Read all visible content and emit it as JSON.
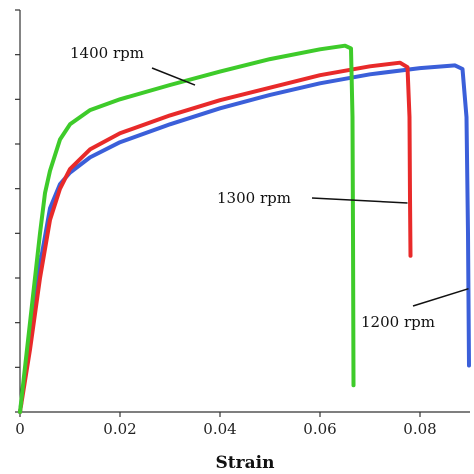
{
  "chart_data": {
    "type": "line",
    "title": "",
    "xlabel": "Strain",
    "ylabel": "",
    "xlim": [
      0,
      0.09
    ],
    "ylim": [
      0,
      450
    ],
    "x_ticks": [
      0,
      0.02,
      0.04,
      0.06,
      0.08
    ],
    "x_tick_labels": [
      "0",
      "0.02",
      "0.04",
      "0.06",
      "0.08"
    ],
    "grid": false,
    "legend": "none",
    "series": [
      {
        "name": "1400 rpm",
        "color": "#3ecb2a",
        "points": [
          [
            0,
            0
          ],
          [
            0.002,
            100
          ],
          [
            0.004,
            200
          ],
          [
            0.005,
            245
          ],
          [
            0.006,
            270
          ],
          [
            0.008,
            305
          ],
          [
            0.01,
            322
          ],
          [
            0.014,
            338
          ],
          [
            0.02,
            350
          ],
          [
            0.03,
            366
          ],
          [
            0.04,
            381
          ],
          [
            0.05,
            395
          ],
          [
            0.06,
            406
          ],
          [
            0.065,
            410
          ],
          [
            0.0662,
            407
          ],
          [
            0.0665,
            330
          ],
          [
            0.0666,
            200
          ],
          [
            0.0667,
            30
          ]
        ]
      },
      {
        "name": "1300 rpm",
        "color": "#e82a2a",
        "points": [
          [
            0,
            0
          ],
          [
            0.002,
            70
          ],
          [
            0.004,
            150
          ],
          [
            0.006,
            215
          ],
          [
            0.008,
            250
          ],
          [
            0.01,
            272
          ],
          [
            0.014,
            294
          ],
          [
            0.02,
            312
          ],
          [
            0.03,
            332
          ],
          [
            0.04,
            349
          ],
          [
            0.05,
            363
          ],
          [
            0.06,
            377
          ],
          [
            0.07,
            387
          ],
          [
            0.076,
            391
          ],
          [
            0.0775,
            386
          ],
          [
            0.0779,
            330
          ],
          [
            0.078,
            240
          ],
          [
            0.0781,
            175
          ]
        ]
      },
      {
        "name": "1200 rpm",
        "color": "#3b5fd9",
        "points": [
          [
            0,
            0
          ],
          [
            0.002,
            80
          ],
          [
            0.004,
            165
          ],
          [
            0.006,
            228
          ],
          [
            0.008,
            255
          ],
          [
            0.01,
            268
          ],
          [
            0.014,
            285
          ],
          [
            0.02,
            302
          ],
          [
            0.03,
            322
          ],
          [
            0.04,
            340
          ],
          [
            0.05,
            355
          ],
          [
            0.06,
            368
          ],
          [
            0.07,
            378
          ],
          [
            0.08,
            385
          ],
          [
            0.087,
            388
          ],
          [
            0.0885,
            384
          ],
          [
            0.0893,
            330
          ],
          [
            0.0896,
            200
          ],
          [
            0.0898,
            52
          ]
        ]
      }
    ],
    "annotations": [
      {
        "text": "1400 rpm",
        "target_series": "1400 rpm",
        "target": [
          0.035,
          366
        ]
      },
      {
        "text": "1300 rpm",
        "target_series": "1300 rpm",
        "target": [
          0.0775,
          234
        ]
      },
      {
        "text": "1200 rpm",
        "target_series": "1200 rpm",
        "target": [
          0.0897,
          138
        ]
      }
    ]
  }
}
